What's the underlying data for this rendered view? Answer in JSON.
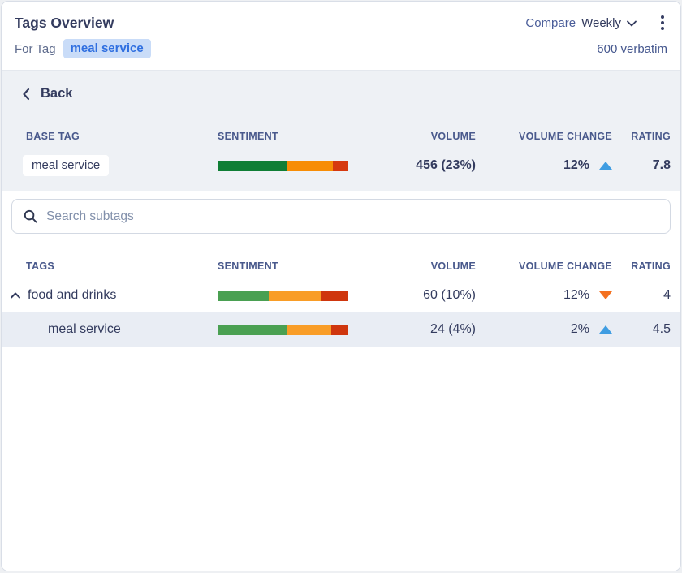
{
  "header": {
    "title": "Tags Overview",
    "compare_label": "Compare",
    "compare_value": "Weekly",
    "for_tag_label": "For Tag",
    "for_tag_value": "meal service",
    "verbatim": "600 verbatim"
  },
  "back_label": "Back",
  "base_table": {
    "columns": {
      "tag": "BASE TAG",
      "sentiment": "SENTIMENT",
      "volume": "VOLUME",
      "volume_change": "VOLUME CHANGE",
      "rating": "RATING"
    },
    "row": {
      "tag": "meal service",
      "sentiment": {
        "positive": 53,
        "neutral": 35,
        "negative": 12
      },
      "volume": "456 (23%)",
      "volume_change": "12%",
      "change_direction": "up",
      "rating": "7.8"
    }
  },
  "search": {
    "placeholder": "Search subtags"
  },
  "subtags_table": {
    "columns": {
      "tag": "TAGS",
      "sentiment": "SENTIMENT",
      "volume": "VOLUME",
      "volume_change": "VOLUME CHANGE",
      "rating": "RATING"
    },
    "rows": [
      {
        "tag": "food and drinks",
        "expanded": true,
        "indent": 0,
        "sentiment": {
          "positive": 39,
          "neutral": 40,
          "negative": 21
        },
        "volume": "60 (10%)",
        "volume_change": "12%",
        "change_direction": "down",
        "rating": "4",
        "highlighted": false
      },
      {
        "tag": "meal service",
        "expanded": false,
        "indent": 1,
        "sentiment": {
          "positive": 53,
          "neutral": 34,
          "negative": 13
        },
        "volume": "24 (4%)",
        "volume_change": "2%",
        "change_direction": "up",
        "rating": "4.5",
        "highlighted": true
      }
    ]
  },
  "colors": {
    "accent_blue": "#2f6fe0",
    "chip_bg": "#c9dcf8",
    "up_arrow": "#3f9de2",
    "down_arrow": "#f4711f",
    "base_positive": "#0f7e35",
    "base_neutral": "#f78d05",
    "base_negative": "#d6390f",
    "row_positive": "#4aa052",
    "row_neutral": "#f99d27",
    "row_negative": "#cf360e",
    "row_highlight": "#e9edf4"
  }
}
